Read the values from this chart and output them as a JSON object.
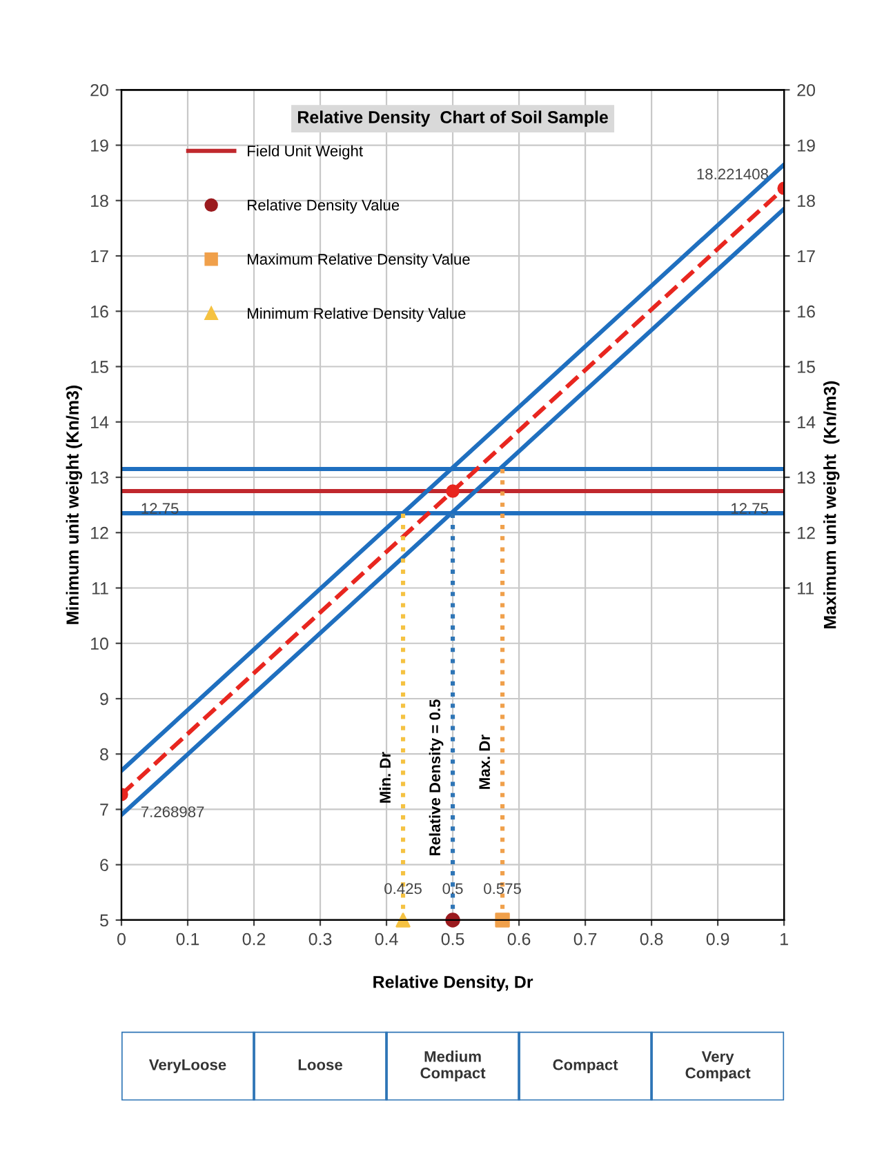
{
  "chart_data": {
    "type": "line",
    "title": "Relative Density  Chart of Soil Sample",
    "xlabel": "Relative Density, Dr",
    "ylabel": "Minimum unit weight (Kn/m3)",
    "y2label": "Maximum unit weight  (Kn/m3)",
    "xlim": [
      0,
      1
    ],
    "xticks": [
      0,
      0.1,
      0.2,
      0.3,
      0.4,
      0.5,
      0.6,
      0.7,
      0.8,
      0.9,
      1
    ],
    "ylim": [
      5,
      20
    ],
    "yticks": [
      5,
      6,
      7,
      8,
      9,
      10,
      11,
      12,
      13,
      14,
      15,
      16,
      17,
      18,
      19,
      20
    ],
    "y2lim": [
      5,
      20
    ],
    "y2ticks": [
      11,
      12,
      13,
      14,
      15,
      16,
      17,
      18,
      19,
      20
    ],
    "grid": true,
    "legend": "top left",
    "series": [
      {
        "name": "Field Unit Weight",
        "color": "#c0282d",
        "x": [
          0,
          1
        ],
        "values": [
          12.75,
          12.75
        ],
        "line_style": "solid",
        "marker": "none",
        "value_labels": [
          "12.75",
          "12.75"
        ]
      },
      {
        "color": "#e8261f",
        "x": [
          0,
          0.5,
          1
        ],
        "values": [
          7.268987,
          12.75,
          18.221408
        ],
        "line_style": "dashed",
        "marker": "circle",
        "value_labels": [
          "7.268987",
          null,
          "18.221408"
        ]
      },
      {
        "color": "#1f6fbf",
        "x": [
          0,
          1
        ],
        "values": [
          7.7,
          18.65
        ],
        "line_style": "solid",
        "marker": "none"
      },
      {
        "color": "#1f6fbf",
        "x": [
          0,
          1
        ],
        "values": [
          6.9,
          17.85
        ],
        "line_style": "solid",
        "marker": "none"
      },
      {
        "name": "Min. Dr",
        "color": "#f5c242",
        "x": [
          0.425,
          0.425
        ],
        "values": [
          5,
          12.35
        ],
        "line_style": "dotted",
        "marker": "none"
      },
      {
        "name": "Relative Density = 0.5",
        "color": "#2e75b6",
        "x": [
          0.5,
          0.5
        ],
        "values": [
          5,
          12.35
        ],
        "line_style": "dotted",
        "marker": "none"
      },
      {
        "name": "Max. Dr",
        "color": "#f0a04b",
        "x": [
          0.575,
          0.575
        ],
        "values": [
          5,
          13.15
        ],
        "line_style": "dotted",
        "marker": "none"
      },
      {
        "name": "Relative Density Value",
        "type": "scatter",
        "color": "#9b1b1f",
        "x": [
          0.5
        ],
        "values": [
          5
        ],
        "marker": "circle"
      },
      {
        "name": "Maximum Relative Density Value",
        "type": "scatter",
        "color": "#f0a04b",
        "x": [
          0.575
        ],
        "values": [
          5
        ],
        "marker": "square"
      },
      {
        "name": "Minimum Relative Density Value",
        "type": "scatter",
        "color": "#f5c242",
        "x": [
          0.425
        ],
        "values": [
          5
        ],
        "marker": "triangle"
      }
    ],
    "ref_lines": [
      {
        "axis": "y",
        "value": 13.15,
        "color": "#1f6fbf",
        "line_style": "solid"
      },
      {
        "axis": "y",
        "value": 12.35,
        "color": "#1f6fbf",
        "line_style": "solid"
      }
    ],
    "annotations": [
      {
        "text": "0.425",
        "x": 0.425,
        "y": 5
      },
      {
        "text": "0.5",
        "x": 0.5,
        "y": 5
      },
      {
        "text": "0.575",
        "x": 0.575,
        "y": 5
      },
      "VeryLoose",
      "Loose",
      "Medium\nCompact",
      "Compact",
      "Very\nCompact"
    ]
  }
}
